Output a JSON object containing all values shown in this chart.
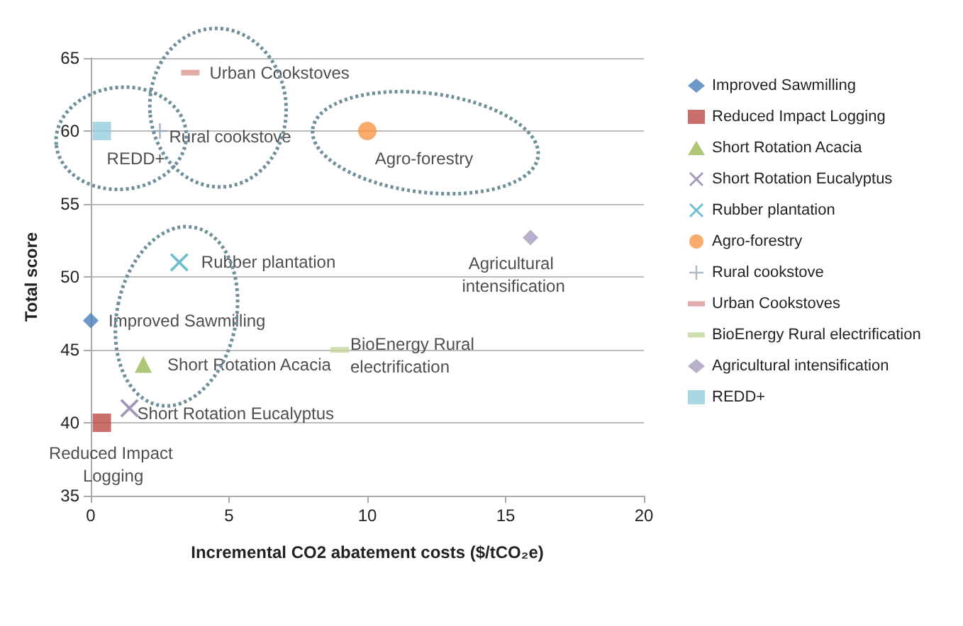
{
  "chart_data": {
    "type": "scatter",
    "xlabel": "Incremental CO2 abatement costs ($/tCO₂e)",
    "ylabel": "Total score",
    "xlim": [
      0,
      20
    ],
    "xticks": [
      0,
      5,
      10,
      15,
      20
    ],
    "ylim": [
      35,
      65
    ],
    "yticks": [
      35,
      40,
      45,
      50,
      55,
      60,
      65
    ],
    "grid": "y",
    "legend": "right",
    "series": [
      {
        "name": "Improved Sawmilling",
        "color": "#4a7ebb",
        "marker": "diamond",
        "x": [
          0
        ],
        "values": [
          47
        ]
      },
      {
        "name": "Reduced Impact Logging",
        "color": "#be4b48",
        "marker": "square",
        "x": [
          0.4
        ],
        "values": [
          40
        ]
      },
      {
        "name": "Short Rotation Acacia",
        "color": "#98b954",
        "marker": "triangle",
        "x": [
          1.9
        ],
        "values": [
          44
        ]
      },
      {
        "name": "Short Rotation Eucalyptus",
        "color": "#8c7aa8",
        "marker": "cross",
        "x": [
          1.4
        ],
        "values": [
          41
        ]
      },
      {
        "name": "Rubber plantation",
        "color": "#4bacc6",
        "marker": "cross",
        "x": [
          3.2
        ],
        "values": [
          51
        ]
      },
      {
        "name": "Agro-forestry",
        "color": "#f79646",
        "marker": "circle",
        "x": [
          10
        ],
        "values": [
          60
        ]
      },
      {
        "name": "Rural cookstove",
        "color": "#9aa8b8",
        "marker": "plus",
        "x": [
          2.5
        ],
        "values": [
          60
        ]
      },
      {
        "name": "Urban Cookstoves",
        "color": "#d99694",
        "x": [
          3.6
        ],
        "values": [
          64
        ]
      },
      {
        "name": "BioEnergy Rural electrification",
        "color": "#c3d69b",
        "x": [
          9
        ],
        "values": [
          45
        ]
      },
      {
        "name": "Agricultural intensification",
        "color": "#a99bbd",
        "marker": "diamond",
        "x": [
          15.9
        ],
        "values": [
          52.7
        ]
      },
      {
        "name": "REDD+",
        "color": "#93cddd",
        "marker": "square",
        "x": [
          0.4
        ],
        "values": [
          60
        ]
      }
    ]
  }
}
